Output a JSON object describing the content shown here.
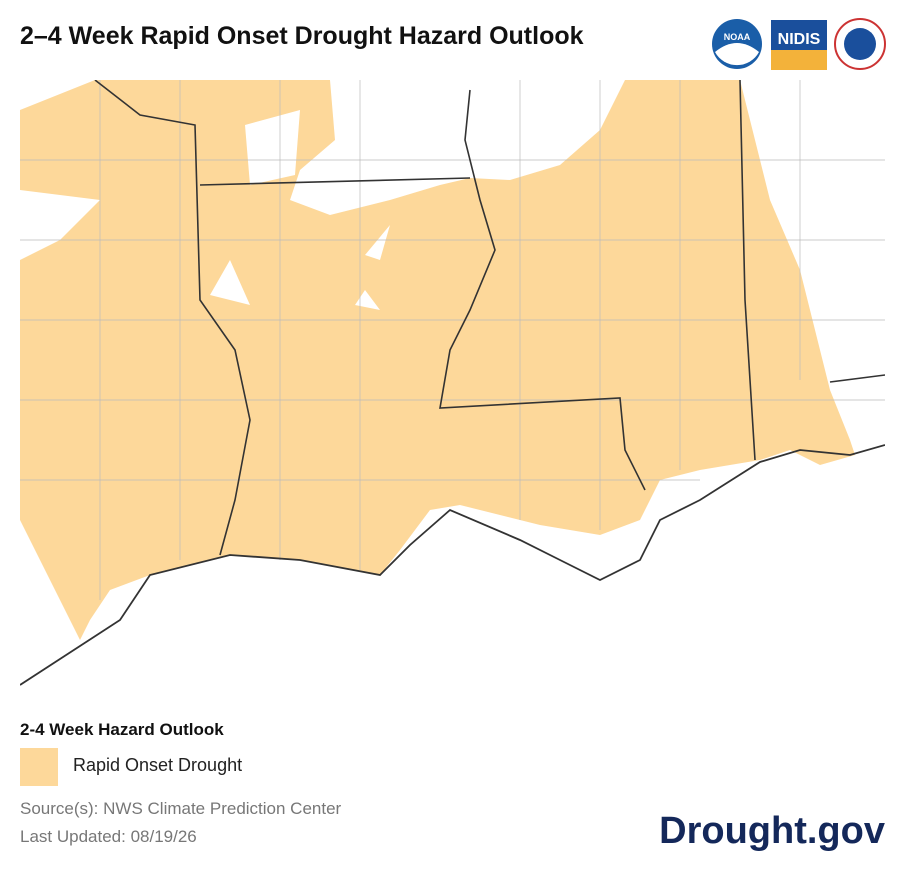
{
  "header": {
    "title": "2–4 Week Rapid Onset Drought Hazard Outlook",
    "logos": [
      "NOAA",
      "NIDIS"
    ]
  },
  "legend": {
    "title": "2-4 Week Hazard Outlook",
    "items": [
      {
        "label": "Rapid Onset Drought",
        "color": "#fdd89a"
      }
    ]
  },
  "footer": {
    "source": "Source(s): NWS Climate Prediction Center",
    "updated": "Last Updated: 08/19/26",
    "brand": "Drought.gov"
  }
}
